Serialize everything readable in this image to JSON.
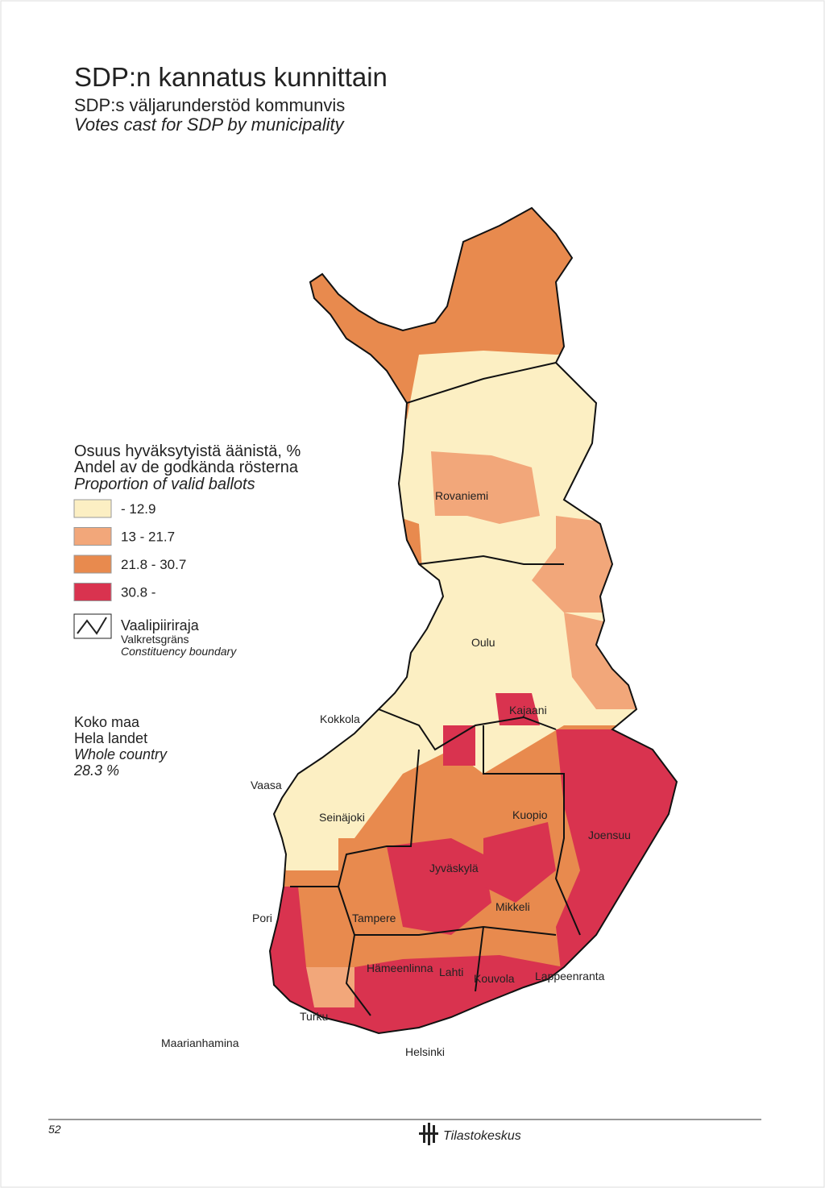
{
  "header": {
    "title": "SDP:n kannatus kunnittain",
    "subtitle": "SDP:s väljarunderstöd kommunvis",
    "subtitle_en": "Votes cast for SDP by municipality"
  },
  "legend": {
    "title": [
      "Osuus hyväksytyistä äänistä, %",
      "Andel av de godkända rösterna",
      "Proportion of valid ballots"
    ],
    "classes": [
      {
        "label": "- 12.9",
        "color": "#fcefc3"
      },
      {
        "label": "13 - 21.7",
        "color": "#f2a77a"
      },
      {
        "label": "21.8 - 30.7",
        "color": "#e88a4e"
      },
      {
        "label": "30.8 -",
        "color": "#d9334f"
      }
    ]
  },
  "boundary_legend": {
    "lines": [
      "Vaalipiiriraja",
      "Valkretsgräns",
      "Constituency boundary"
    ]
  },
  "whole_country": {
    "lines": [
      "Koko maa",
      "Hela landet",
      "Whole country",
      "28.3 %"
    ]
  },
  "places": [
    "Rovaniemi",
    "Oulu",
    "Kokkola",
    "Kajaani",
    "Vaasa",
    "Seinäjoki",
    "Kuopio",
    "Joensuu",
    "Jyväskylä",
    "Pori",
    "Tampere",
    "Mikkeli",
    "Hämeenlinna",
    "Lahti",
    "Kouvola",
    "Lappeenranta",
    "Turku",
    "Helsinki",
    "Maarianhamina"
  ],
  "footer": {
    "page": "52",
    "publisher": "Tilastokeskus"
  }
}
